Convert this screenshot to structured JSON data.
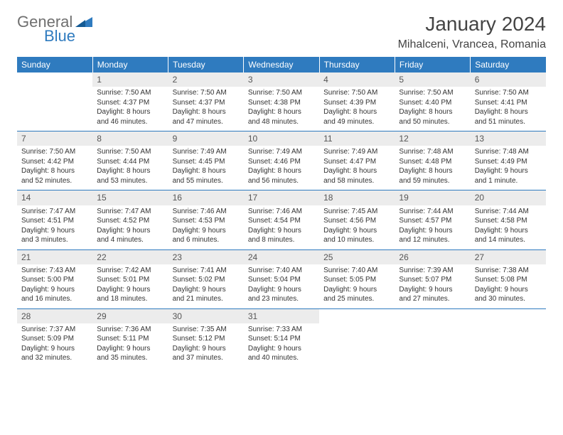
{
  "colors": {
    "header_bg": "#2f7bbf",
    "header_text": "#ffffff",
    "daynum_bg": "#ececec",
    "daynum_text": "#555555",
    "body_text": "#333333",
    "row_border": "#2f7bbf",
    "logo_gray": "#6f6f6f",
    "logo_blue": "#2f7bbf",
    "page_bg": "#ffffff"
  },
  "typography": {
    "month_title_fontsize": 28,
    "location_fontsize": 16,
    "weekday_fontsize": 12,
    "daynum_fontsize": 12,
    "cell_fontsize": 10
  },
  "logo": {
    "text1": "General",
    "text2": "Blue"
  },
  "title": "January 2024",
  "location": "Mihalceni, Vrancea, Romania",
  "weekdays": [
    "Sunday",
    "Monday",
    "Tuesday",
    "Wednesday",
    "Thursday",
    "Friday",
    "Saturday"
  ],
  "weeks": [
    [
      {
        "date": "",
        "lines": [
          "",
          "",
          "",
          ""
        ]
      },
      {
        "date": "1",
        "lines": [
          "Sunrise: 7:50 AM",
          "Sunset: 4:37 PM",
          "Daylight: 8 hours",
          "and 46 minutes."
        ]
      },
      {
        "date": "2",
        "lines": [
          "Sunrise: 7:50 AM",
          "Sunset: 4:37 PM",
          "Daylight: 8 hours",
          "and 47 minutes."
        ]
      },
      {
        "date": "3",
        "lines": [
          "Sunrise: 7:50 AM",
          "Sunset: 4:38 PM",
          "Daylight: 8 hours",
          "and 48 minutes."
        ]
      },
      {
        "date": "4",
        "lines": [
          "Sunrise: 7:50 AM",
          "Sunset: 4:39 PM",
          "Daylight: 8 hours",
          "and 49 minutes."
        ]
      },
      {
        "date": "5",
        "lines": [
          "Sunrise: 7:50 AM",
          "Sunset: 4:40 PM",
          "Daylight: 8 hours",
          "and 50 minutes."
        ]
      },
      {
        "date": "6",
        "lines": [
          "Sunrise: 7:50 AM",
          "Sunset: 4:41 PM",
          "Daylight: 8 hours",
          "and 51 minutes."
        ]
      }
    ],
    [
      {
        "date": "7",
        "lines": [
          "Sunrise: 7:50 AM",
          "Sunset: 4:42 PM",
          "Daylight: 8 hours",
          "and 52 minutes."
        ]
      },
      {
        "date": "8",
        "lines": [
          "Sunrise: 7:50 AM",
          "Sunset: 4:44 PM",
          "Daylight: 8 hours",
          "and 53 minutes."
        ]
      },
      {
        "date": "9",
        "lines": [
          "Sunrise: 7:49 AM",
          "Sunset: 4:45 PM",
          "Daylight: 8 hours",
          "and 55 minutes."
        ]
      },
      {
        "date": "10",
        "lines": [
          "Sunrise: 7:49 AM",
          "Sunset: 4:46 PM",
          "Daylight: 8 hours",
          "and 56 minutes."
        ]
      },
      {
        "date": "11",
        "lines": [
          "Sunrise: 7:49 AM",
          "Sunset: 4:47 PM",
          "Daylight: 8 hours",
          "and 58 minutes."
        ]
      },
      {
        "date": "12",
        "lines": [
          "Sunrise: 7:48 AM",
          "Sunset: 4:48 PM",
          "Daylight: 8 hours",
          "and 59 minutes."
        ]
      },
      {
        "date": "13",
        "lines": [
          "Sunrise: 7:48 AM",
          "Sunset: 4:49 PM",
          "Daylight: 9 hours",
          "and 1 minute."
        ]
      }
    ],
    [
      {
        "date": "14",
        "lines": [
          "Sunrise: 7:47 AM",
          "Sunset: 4:51 PM",
          "Daylight: 9 hours",
          "and 3 minutes."
        ]
      },
      {
        "date": "15",
        "lines": [
          "Sunrise: 7:47 AM",
          "Sunset: 4:52 PM",
          "Daylight: 9 hours",
          "and 4 minutes."
        ]
      },
      {
        "date": "16",
        "lines": [
          "Sunrise: 7:46 AM",
          "Sunset: 4:53 PM",
          "Daylight: 9 hours",
          "and 6 minutes."
        ]
      },
      {
        "date": "17",
        "lines": [
          "Sunrise: 7:46 AM",
          "Sunset: 4:54 PM",
          "Daylight: 9 hours",
          "and 8 minutes."
        ]
      },
      {
        "date": "18",
        "lines": [
          "Sunrise: 7:45 AM",
          "Sunset: 4:56 PM",
          "Daylight: 9 hours",
          "and 10 minutes."
        ]
      },
      {
        "date": "19",
        "lines": [
          "Sunrise: 7:44 AM",
          "Sunset: 4:57 PM",
          "Daylight: 9 hours",
          "and 12 minutes."
        ]
      },
      {
        "date": "20",
        "lines": [
          "Sunrise: 7:44 AM",
          "Sunset: 4:58 PM",
          "Daylight: 9 hours",
          "and 14 minutes."
        ]
      }
    ],
    [
      {
        "date": "21",
        "lines": [
          "Sunrise: 7:43 AM",
          "Sunset: 5:00 PM",
          "Daylight: 9 hours",
          "and 16 minutes."
        ]
      },
      {
        "date": "22",
        "lines": [
          "Sunrise: 7:42 AM",
          "Sunset: 5:01 PM",
          "Daylight: 9 hours",
          "and 18 minutes."
        ]
      },
      {
        "date": "23",
        "lines": [
          "Sunrise: 7:41 AM",
          "Sunset: 5:02 PM",
          "Daylight: 9 hours",
          "and 21 minutes."
        ]
      },
      {
        "date": "24",
        "lines": [
          "Sunrise: 7:40 AM",
          "Sunset: 5:04 PM",
          "Daylight: 9 hours",
          "and 23 minutes."
        ]
      },
      {
        "date": "25",
        "lines": [
          "Sunrise: 7:40 AM",
          "Sunset: 5:05 PM",
          "Daylight: 9 hours",
          "and 25 minutes."
        ]
      },
      {
        "date": "26",
        "lines": [
          "Sunrise: 7:39 AM",
          "Sunset: 5:07 PM",
          "Daylight: 9 hours",
          "and 27 minutes."
        ]
      },
      {
        "date": "27",
        "lines": [
          "Sunrise: 7:38 AM",
          "Sunset: 5:08 PM",
          "Daylight: 9 hours",
          "and 30 minutes."
        ]
      }
    ],
    [
      {
        "date": "28",
        "lines": [
          "Sunrise: 7:37 AM",
          "Sunset: 5:09 PM",
          "Daylight: 9 hours",
          "and 32 minutes."
        ]
      },
      {
        "date": "29",
        "lines": [
          "Sunrise: 7:36 AM",
          "Sunset: 5:11 PM",
          "Daylight: 9 hours",
          "and 35 minutes."
        ]
      },
      {
        "date": "30",
        "lines": [
          "Sunrise: 7:35 AM",
          "Sunset: 5:12 PM",
          "Daylight: 9 hours",
          "and 37 minutes."
        ]
      },
      {
        "date": "31",
        "lines": [
          "Sunrise: 7:33 AM",
          "Sunset: 5:14 PM",
          "Daylight: 9 hours",
          "and 40 minutes."
        ]
      },
      {
        "date": "",
        "lines": [
          "",
          "",
          "",
          ""
        ]
      },
      {
        "date": "",
        "lines": [
          "",
          "",
          "",
          ""
        ]
      },
      {
        "date": "",
        "lines": [
          "",
          "",
          "",
          ""
        ]
      }
    ]
  ]
}
